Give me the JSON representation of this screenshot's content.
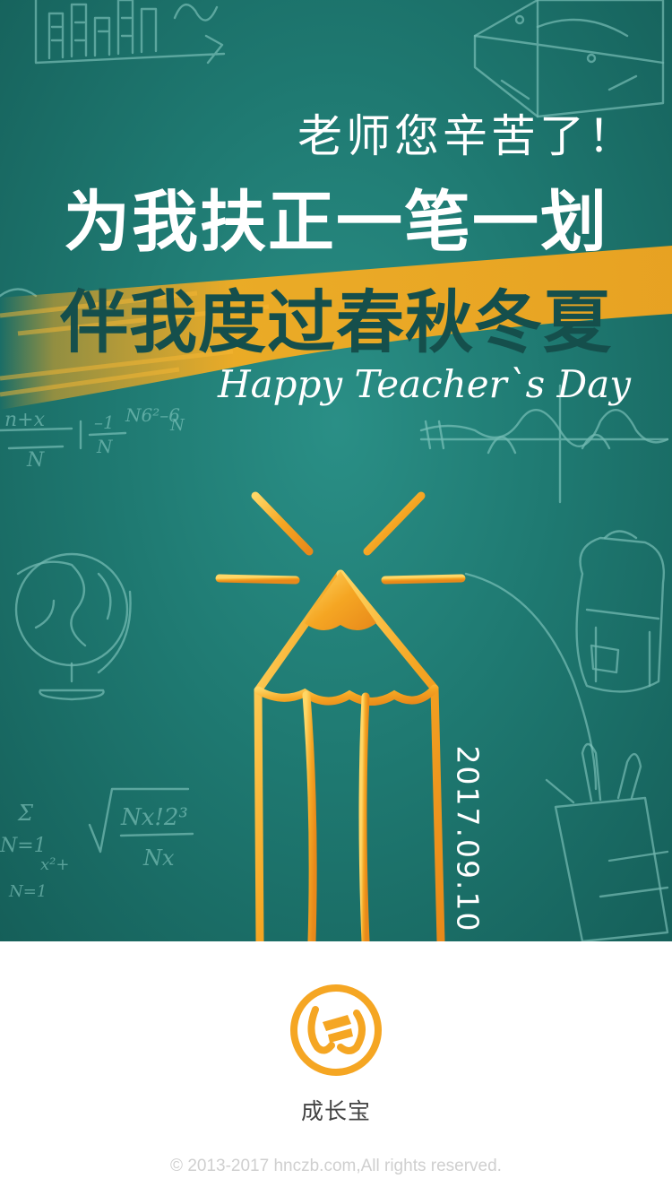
{
  "poster": {
    "line1": "老师您辛苦了！",
    "line2": "为我扶正一笔一划",
    "line3": "伴我度过春秋冬夏",
    "english": "Happy Teacher`s Day",
    "date": "2017.09.10",
    "background_color": "#1f7a72",
    "brush_color": "#f2a51f",
    "pencil_color": "#f5a623",
    "decorations": [
      "chalk-formula-icon",
      "bar-chart-icon",
      "globe-icon",
      "backpack-icon",
      "paintbrush-cup-icon",
      "wave-graph-icon",
      "pencil-icon"
    ]
  },
  "footer": {
    "brand_name": "成长宝",
    "logo_icon": "brand-logo-icon",
    "logo_color": "#f5a623",
    "copyright": "© 2013-2017 hnczb.com,All rights reserved."
  }
}
